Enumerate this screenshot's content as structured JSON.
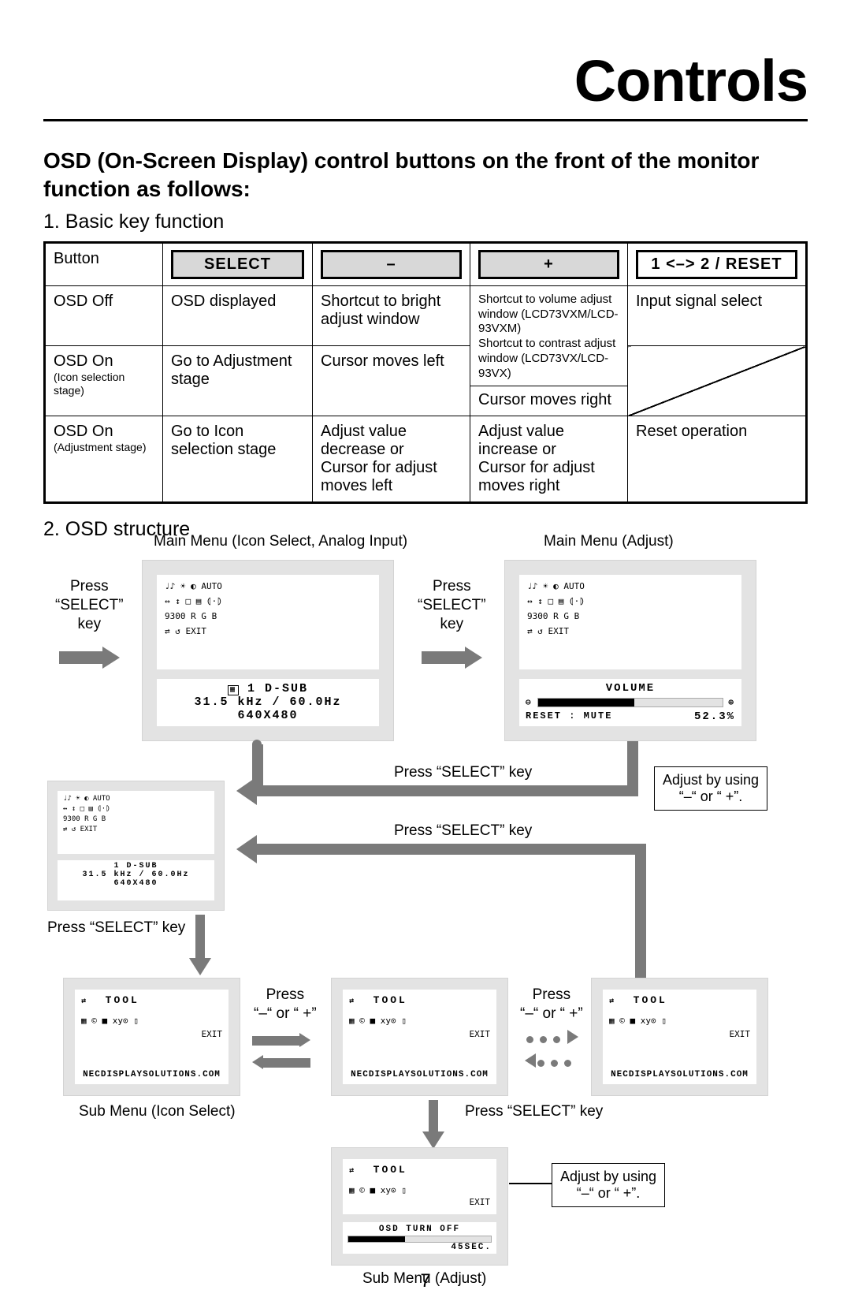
{
  "page_title": "Controls",
  "intro_heading": "OSD (On-Screen Display) control buttons on the front of the monitor function as follows:",
  "section1_heading": "1. Basic key function",
  "section2_heading": "2. OSD structure",
  "table": {
    "header_row_label": "Button",
    "buttons": [
      "SELECT",
      "–",
      "+",
      "1 <–> 2 / RESET"
    ],
    "rows": [
      {
        "label": "OSD Off",
        "sublabel": "",
        "c1": "OSD displayed",
        "c2": "Shortcut to bright adjust window",
        "c3": "Shortcut to volume adjust window (LCD73VXM/LCD-93VXM)\nShortcut to contrast adjust window (LCD73VX/LCD-93VX)",
        "c4": "Input signal select"
      },
      {
        "label": "OSD On",
        "sublabel": "(Icon selection stage)",
        "c1": "Go to Adjustment stage",
        "c2": "Cursor moves left",
        "c3": "Cursor moves right",
        "c4": ""
      },
      {
        "label": "OSD On",
        "sublabel": "(Adjustment stage)",
        "c1": "Go to Icon selection stage",
        "c2": "Adjust value decrease or\nCursor for adjust moves left",
        "c3": "Adjust value increase or\nCursor for adjust moves right",
        "c4": "Reset operation"
      }
    ]
  },
  "labels": {
    "main_icon": "Main Menu (Icon Select, Analog Input)",
    "main_adjust": "Main Menu (Adjust)",
    "press_select": "Press\n“SELECT”\nkey",
    "press_select_inline": "Press “SELECT” key",
    "press_pm": "Press\n“–“ or “ +”",
    "adjust_pm": "Adjust by using\n“–“ or “ +”.",
    "sub_icon": "Sub Menu (Icon Select)",
    "sub_adjust": "Sub Menu (Adjust)"
  },
  "panel_main": {
    "row1": "♩♪  ☀  ◐  AUTO",
    "row2": "↔  ↕  □  ▤  ⦇·⦈",
    "row3": "9300  R   G   B",
    "row4": "⇄  ↺           EXIT",
    "status_port": "1  D-SUB",
    "status_freq": "31.5 kHz /  60.0Hz",
    "status_res": "640X480"
  },
  "panel_adjust": {
    "title": "VOLUME",
    "reset_label": "RESET : MUTE",
    "value": "52.3%",
    "fill_pct": 52.3
  },
  "panel_tool": {
    "title": "TOOL",
    "icons": "▦ © ■ xy⊙ ▯",
    "exit": "EXIT",
    "footer": "NECDISPLAYSOLUTIONS.COM"
  },
  "panel_tool_adjust": {
    "title": "TOOL",
    "status_title": "OSD  TURN  OFF",
    "value": "45SEC.",
    "fill_pct": 40
  },
  "page_number": "7"
}
